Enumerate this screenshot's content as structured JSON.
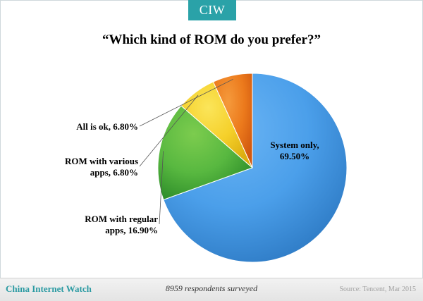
{
  "brand": {
    "tab_label": "CIW",
    "footer_name": "China Internet Watch"
  },
  "footer": {
    "note": "8959 respondents surveyed",
    "source": "Source: Tencent, Mar 2015"
  },
  "chart_data": {
    "type": "pie",
    "title": "“Which kind of ROM do you prefer?”",
    "start_angle_deg": 0,
    "direction": "clockwise",
    "slices": [
      {
        "label": "System only, 69.50%",
        "lines": [
          "System only,",
          "69.50%"
        ],
        "value": 69.5,
        "color": "#4b9fea",
        "color_light": "#6ab4f4",
        "color_dark": "#2f7cc6"
      },
      {
        "label": "ROM with regular apps, 16.90%",
        "lines": [
          "ROM with regular",
          "apps, 16.90%"
        ],
        "value": 16.9,
        "color": "#58b840",
        "color_light": "#7ccc4e",
        "color_dark": "#2f8e2a"
      },
      {
        "label": "ROM with various apps, 6.80%",
        "lines": [
          "ROM with various",
          "apps, 6.80%"
        ],
        "value": 6.8,
        "color": "#f5d02a",
        "color_light": "#fbe55a",
        "color_dark": "#dcae10"
      },
      {
        "label": "All is ok, 6.80%",
        "lines": [
          "All is ok, 6.80%"
        ],
        "value": 6.8,
        "color": "#ec7a1c",
        "color_light": "#f59a3c",
        "color_dark": "#d25a10"
      }
    ],
    "legend": "none"
  }
}
